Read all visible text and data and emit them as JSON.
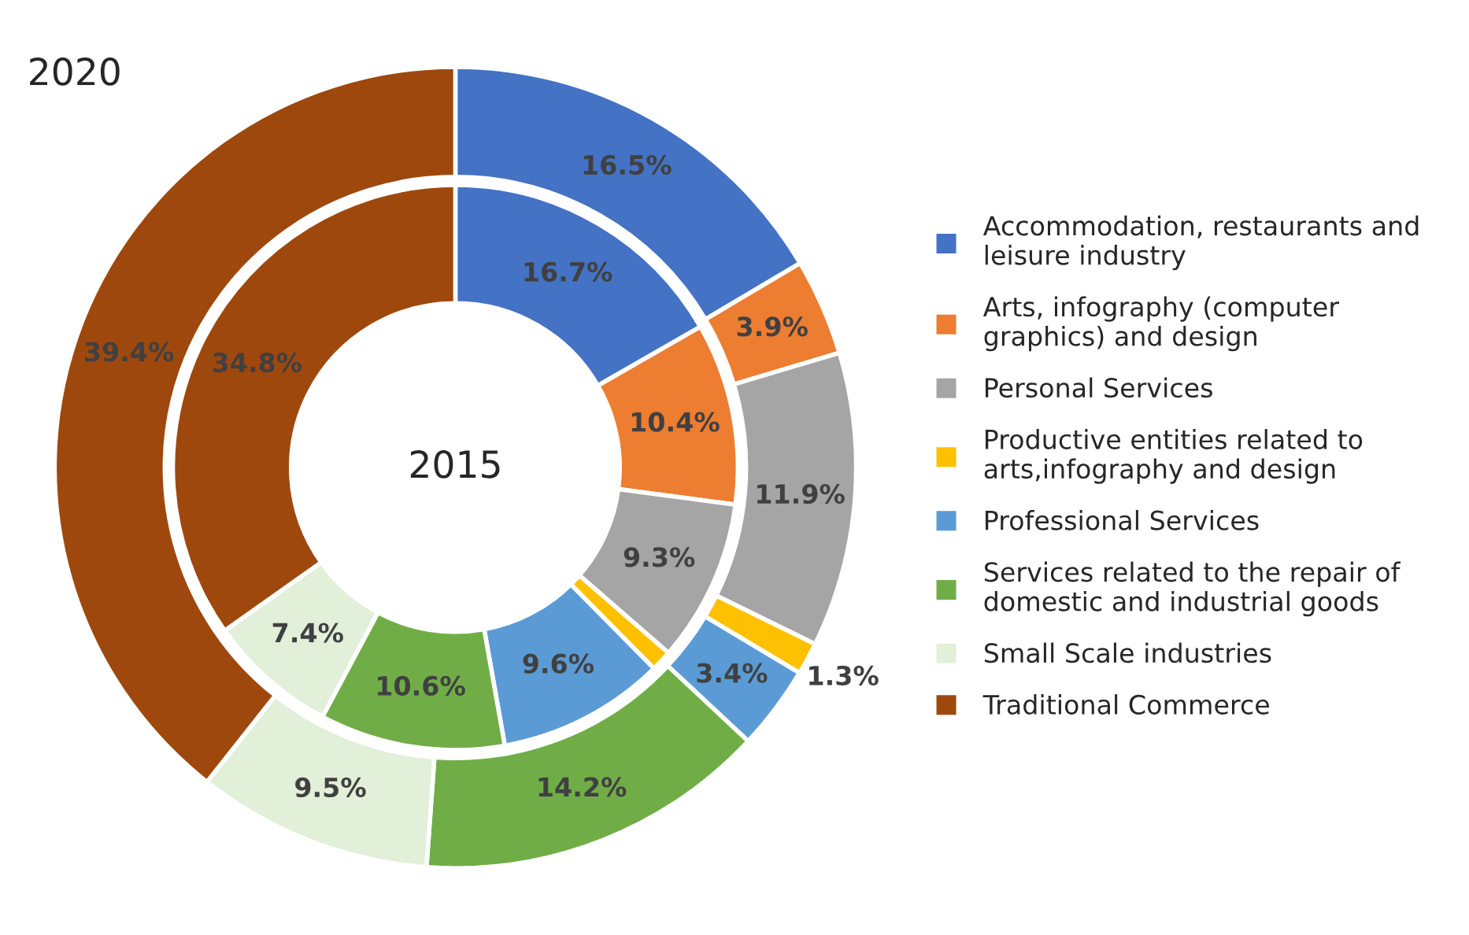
{
  "chart_data": {
    "type": "donut",
    "categories": [
      "Accommodation, restaurants and\nleisure industry",
      "Arts, infography (computer\ngraphics) and design",
      "Personal Services",
      "Productive entities related to\narts,infography and design",
      "Professional Services",
      "Services related to the repair of\ndomestic and industrial goods",
      "Small Scale industries",
      "Traditional Commerce"
    ],
    "colors": [
      "#4472c4",
      "#ed7d31",
      "#a5a5a5",
      "#ffc000",
      "#5b9bd5",
      "#70ad47",
      "#e2efd9",
      "#9e480e"
    ],
    "series": [
      {
        "name": "2020",
        "values": [
          16.5,
          3.9,
          11.9,
          1.3,
          3.4,
          14.2,
          9.5,
          39.4
        ],
        "value_labels": [
          "16.5%",
          "3.9%",
          "11.9%",
          "1.3%",
          "3.4%",
          "14.2%",
          "9.5%",
          "39.4%"
        ]
      },
      {
        "name": "2015",
        "values": [
          16.7,
          10.4,
          9.3,
          1.2,
          9.6,
          10.6,
          7.4,
          34.8
        ],
        "value_labels": [
          "16.7%",
          "10.4%",
          "9.3%",
          null,
          "9.6%",
          "10.6%",
          "7.4%",
          "34.8%"
        ]
      }
    ],
    "legend": "right"
  }
}
